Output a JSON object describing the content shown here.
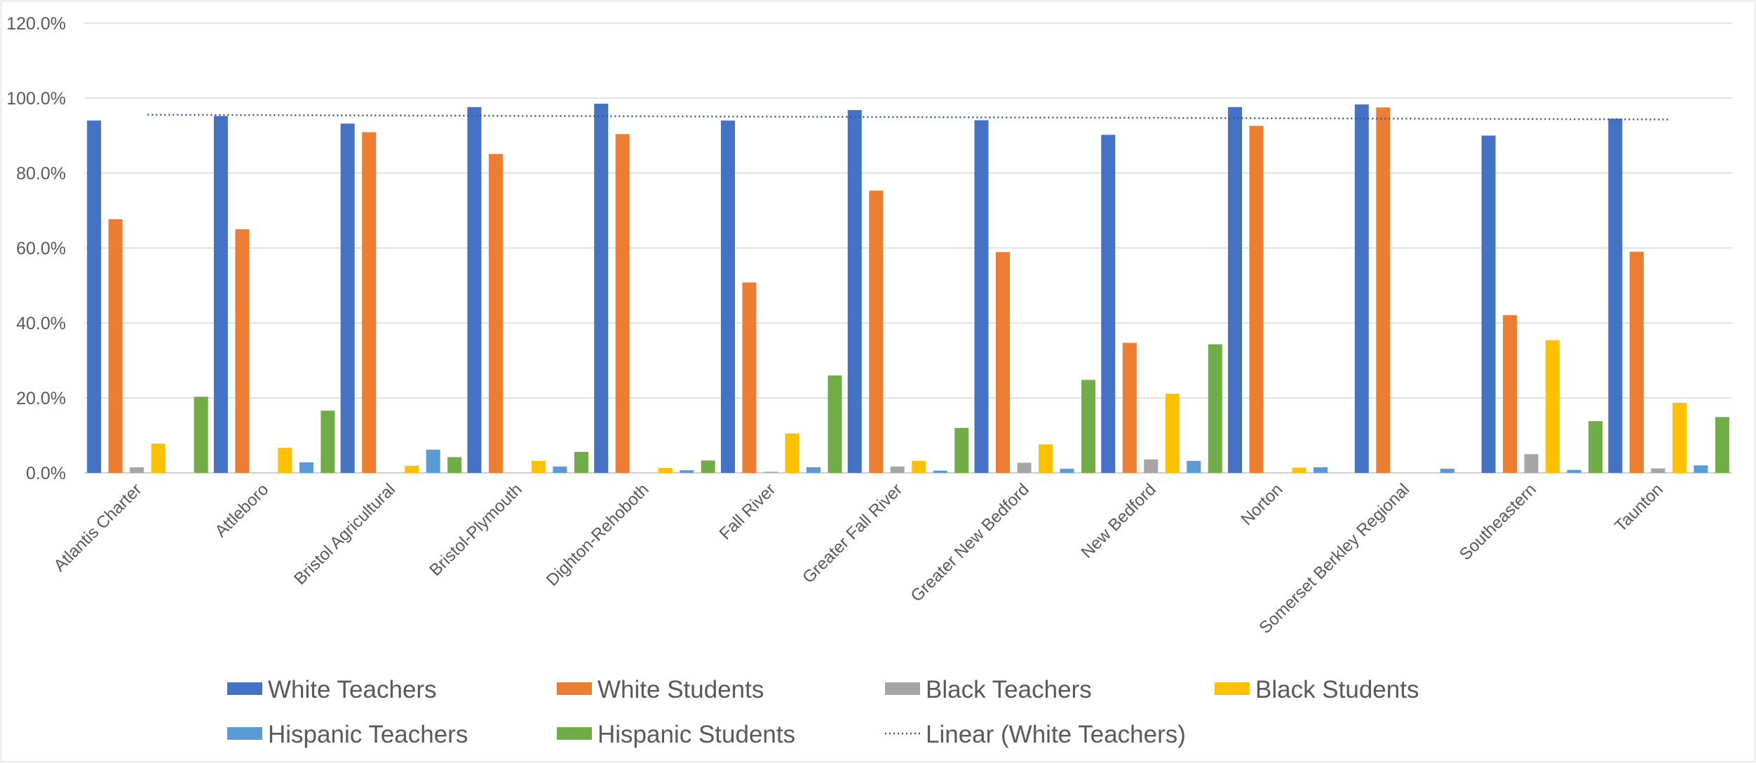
{
  "chart_data": {
    "type": "bar",
    "categories": [
      "Atlantis Charter",
      "Attleboro",
      "Bristol Agricultural",
      "Bristol-Plymouth",
      "Dighton-Rehoboth",
      "Fall River",
      "Greater Fall River",
      "Greater New Bedford",
      "New Bedford",
      "Norton",
      "Somerset Berkley Regional",
      "Southeastern",
      "Taunton"
    ],
    "series": [
      {
        "name": "White Teachers",
        "color": "#4472C4",
        "values": [
          94.0,
          95.2,
          93.2,
          97.6,
          98.5,
          94.0,
          96.8,
          94.1,
          90.2,
          97.6,
          98.3,
          90.0,
          94.5
        ]
      },
      {
        "name": "White Students",
        "color": "#ED7D31",
        "values": [
          67.7,
          65.0,
          90.9,
          85.1,
          90.4,
          50.8,
          75.3,
          58.9,
          34.7,
          92.6,
          97.5,
          42.1,
          59.0
        ]
      },
      {
        "name": "Black Teachers",
        "color": "#A5A5A5",
        "values": [
          1.5,
          0.0,
          0.0,
          0.0,
          0.0,
          0.3,
          1.7,
          2.7,
          3.6,
          0.0,
          0.0,
          5.0,
          1.2
        ]
      },
      {
        "name": "Black Students",
        "color": "#FFC000",
        "values": [
          7.8,
          6.7,
          1.9,
          3.2,
          1.3,
          10.5,
          3.2,
          7.6,
          21.1,
          1.4,
          0.0,
          35.4,
          18.7
        ]
      },
      {
        "name": "Hispanic Teachers",
        "color": "#5B9BD5",
        "values": [
          0.0,
          2.8,
          6.2,
          1.7,
          0.7,
          1.5,
          0.6,
          1.1,
          3.2,
          1.5,
          1.1,
          0.8,
          2.0
        ]
      },
      {
        "name": "Hispanic Students",
        "color": "#70AD47",
        "values": [
          20.3,
          16.6,
          4.2,
          5.6,
          3.3,
          26.0,
          12.0,
          24.8,
          34.3,
          0.0,
          0.0,
          13.8,
          14.9
        ]
      }
    ],
    "trendline": {
      "name": "Linear (White Teachers)",
      "color": "#2F5597",
      "series": "White Teachers"
    },
    "title": "",
    "xlabel": "",
    "ylabel": "",
    "ylim": [
      0,
      120
    ],
    "yticks": [
      "0.0%",
      "20.0%",
      "40.0%",
      "60.0%",
      "80.0%",
      "100.0%",
      "120.0%"
    ],
    "grid": true,
    "legend": "bottom"
  }
}
